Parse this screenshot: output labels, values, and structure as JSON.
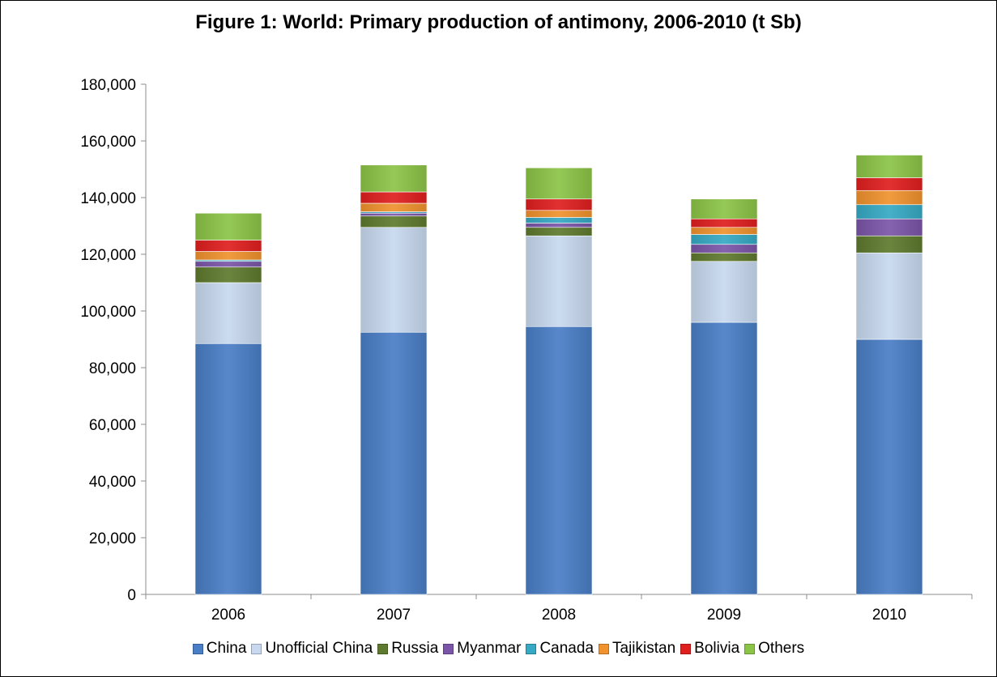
{
  "chart_data": {
    "type": "bar",
    "stacked": true,
    "title": "Figure 1: World: Primary production of antimony, 2006-2010 (t Sb)",
    "xlabel": "",
    "ylabel": "",
    "ylim": [
      0,
      180000
    ],
    "yticks": [
      0,
      20000,
      40000,
      60000,
      80000,
      100000,
      120000,
      140000,
      160000,
      180000
    ],
    "ytick_labels": [
      "0",
      "20,000",
      "40,000",
      "60,000",
      "80,000",
      "100,000",
      "120,000",
      "140,000",
      "160,000",
      "180,000"
    ],
    "categories": [
      "2006",
      "2007",
      "2008",
      "2009",
      "2010"
    ],
    "grid": false,
    "legend_position": "bottom",
    "series": [
      {
        "name": "China",
        "color": "#4A7EC6",
        "values": [
          88500,
          92500,
          94500,
          96000,
          90000
        ]
      },
      {
        "name": "Unofficial China",
        "color": "#C8D9EF",
        "values": [
          21500,
          37000,
          32000,
          21500,
          30500
        ]
      },
      {
        "name": "Russia",
        "color": "#5E7A2E",
        "values": [
          5500,
          4000,
          3000,
          3000,
          6000
        ]
      },
      {
        "name": "Myanmar",
        "color": "#7B55A8",
        "values": [
          2000,
          1000,
          1500,
          3000,
          6000
        ]
      },
      {
        "name": "Canada",
        "color": "#36A9C4",
        "values": [
          500,
          500,
          2000,
          3500,
          5000
        ]
      },
      {
        "name": "Tajikistan",
        "color": "#F0922E",
        "values": [
          3000,
          3000,
          2500,
          2500,
          5000
        ]
      },
      {
        "name": "Bolivia",
        "color": "#E01F1F",
        "values": [
          4000,
          4000,
          4000,
          3000,
          4500
        ]
      },
      {
        "name": "Others",
        "color": "#8CC447",
        "values": [
          9500,
          9500,
          11000,
          7000,
          8000
        ]
      }
    ]
  }
}
